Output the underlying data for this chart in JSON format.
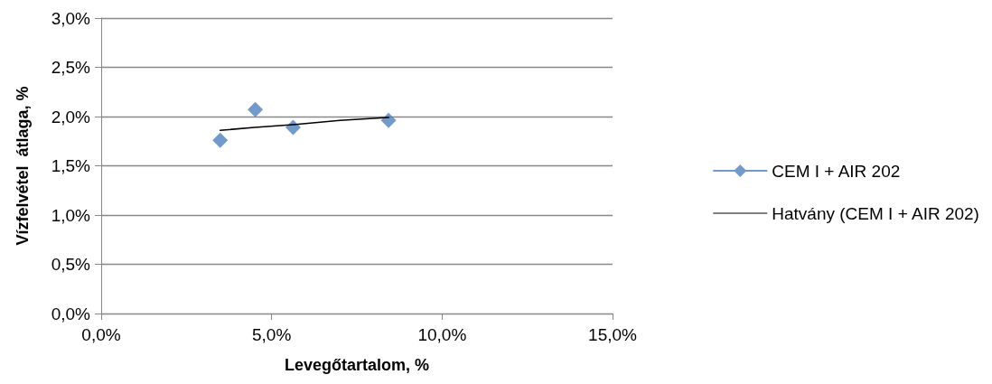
{
  "chart_data": {
    "type": "scatter",
    "xlabel": "Levegőtartalom, %",
    "ylabel": "Vízfelvétel  átlaga, %",
    "series": [
      {
        "name": "CEM I + AIR 202",
        "color": "#4f81bd",
        "marker": "diamond",
        "x": [
          3.49,
          4.52,
          5.63,
          8.43
        ],
        "values": [
          1.76,
          2.07,
          1.89,
          1.96
        ]
      },
      {
        "name": "Hatvány (CEM I + AIR 202)",
        "color": "#000000",
        "type": "line",
        "marker": "none",
        "x": [
          3.49,
          4.5,
          5.7,
          7.0,
          8.43
        ],
        "values": [
          1.86,
          1.89,
          1.92,
          1.96,
          1.99
        ]
      }
    ],
    "xlim": [
      0,
      15
    ],
    "xticks": [
      {
        "value": 0,
        "label": "0,0%"
      },
      {
        "value": 5,
        "label": "5,0%"
      },
      {
        "value": 10,
        "label": "10,0%"
      },
      {
        "value": 15,
        "label": "15,0%"
      }
    ],
    "ylim": [
      0,
      3
    ],
    "yticks": [
      {
        "value": 0,
        "label": "0,0%"
      },
      {
        "value": 0.5,
        "label": "0,5%"
      },
      {
        "value": 1,
        "label": "1,0%"
      },
      {
        "value": 1.5,
        "label": "1,5%"
      },
      {
        "value": 2,
        "label": "2,0%"
      },
      {
        "value": 2.5,
        "label": "2,5%"
      },
      {
        "value": 3,
        "label": "3,0%"
      }
    ],
    "grid": "y",
    "legend": "right"
  }
}
